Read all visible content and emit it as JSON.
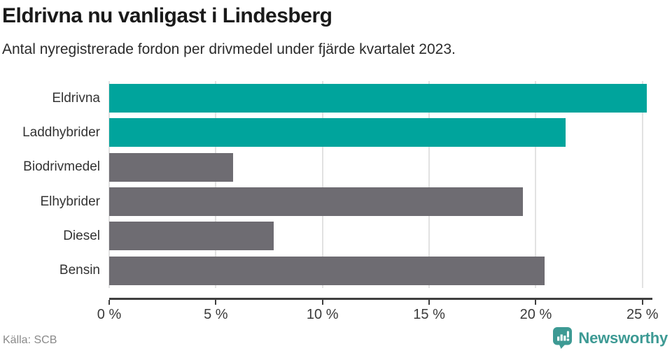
{
  "header": {
    "title": "Eldrivna nu vanligast i Lindesberg",
    "subtitle": "Antal nyregistrerade fordon per drivmedel under fjärde kvartalet 2023."
  },
  "footer": {
    "source": "Källa: SCB",
    "brand": "Newsworthy"
  },
  "icons": {
    "brand_logo": "newsworthy-speech-bubble-bar-chart-icon"
  },
  "colors": {
    "highlight_bar": "#00a49c",
    "default_bar": "#6e6c72",
    "gridline": "#e2e2e2",
    "axis": "#3f3f3f",
    "brand": "#3d9a94"
  },
  "chart_data": {
    "type": "bar",
    "orientation": "horizontal",
    "title": "Eldrivna nu vanligast i Lindesberg",
    "subtitle": "Antal nyregistrerade fordon per drivmedel under fjärde kvartalet 2023.",
    "categories": [
      "Eldrivna",
      "Laddhybrider",
      "Biodrivmedel",
      "Elhybrider",
      "Diesel",
      "Bensin"
    ],
    "values": [
      25.2,
      21.4,
      5.8,
      19.4,
      7.7,
      20.4
    ],
    "bar_colors": [
      "#00a49c",
      "#00a49c",
      "#6e6c72",
      "#6e6c72",
      "#6e6c72",
      "#6e6c72"
    ],
    "unit": "%",
    "x_ticks": [
      "0 %",
      "5 %",
      "10 %",
      "15 %",
      "20 %",
      "25 %"
    ],
    "x_tick_values": [
      0,
      5,
      10,
      15,
      20,
      25
    ],
    "xlim": [
      0,
      25.4
    ],
    "grid": true,
    "legend": false,
    "source": "Källa: SCB"
  }
}
